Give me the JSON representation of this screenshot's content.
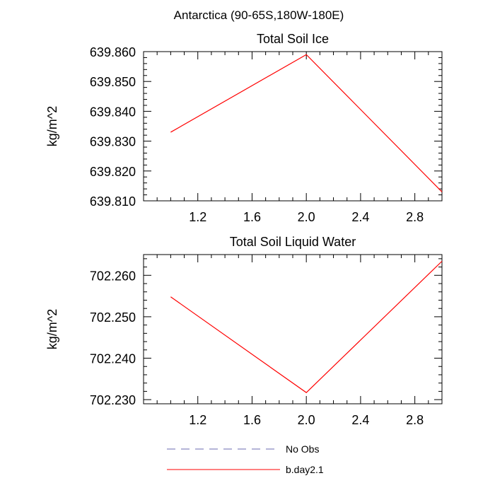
{
  "figure": {
    "title": "Antarctica (90-65S,180W-180E)"
  },
  "chart_data": [
    {
      "type": "line",
      "title": "Total Soil Ice",
      "xlabel": "",
      "ylabel": "kg/m^2",
      "xlim": [
        0.8,
        3.0
      ],
      "ylim": [
        639.81,
        639.86
      ],
      "x_ticks": [
        "1.2",
        "1.6",
        "2.0",
        "2.4",
        "2.8"
      ],
      "x_tick_values": [
        1.2,
        1.6,
        2.0,
        2.4,
        2.8
      ],
      "y_ticks": [
        "639.810",
        "639.820",
        "639.830",
        "639.840",
        "639.850",
        "639.860"
      ],
      "y_tick_values": [
        639.81,
        639.82,
        639.83,
        639.84,
        639.85,
        639.86
      ],
      "grid": false,
      "series": [
        {
          "name": "b.day2.1",
          "color": "#ff0000",
          "x": [
            1,
            2,
            3
          ],
          "y": [
            639.833,
            639.859,
            639.813
          ]
        }
      ]
    },
    {
      "type": "line",
      "title": "Total Soil Liquid Water",
      "xlabel": "",
      "ylabel": "kg/m^2",
      "xlim": [
        0.8,
        3.0
      ],
      "ylim": [
        702.229,
        702.265
      ],
      "x_ticks": [
        "1.2",
        "1.6",
        "2.0",
        "2.4",
        "2.8"
      ],
      "x_tick_values": [
        1.2,
        1.6,
        2.0,
        2.4,
        2.8
      ],
      "y_ticks": [
        "702.230",
        "702.240",
        "702.250",
        "702.260"
      ],
      "y_tick_values": [
        702.23,
        702.24,
        702.25,
        702.26
      ],
      "grid": false,
      "series": [
        {
          "name": "b.day2.1",
          "color": "#ff0000",
          "x": [
            1,
            2,
            3
          ],
          "y": [
            702.2548,
            702.2317,
            702.2634
          ]
        }
      ]
    }
  ],
  "legend": {
    "placement": "bottom",
    "items": [
      {
        "label": "No Obs",
        "color": "#6a6ab0",
        "style": "dashed"
      },
      {
        "label": "b.day2.1",
        "color": "#ff0000",
        "style": "solid"
      }
    ]
  }
}
